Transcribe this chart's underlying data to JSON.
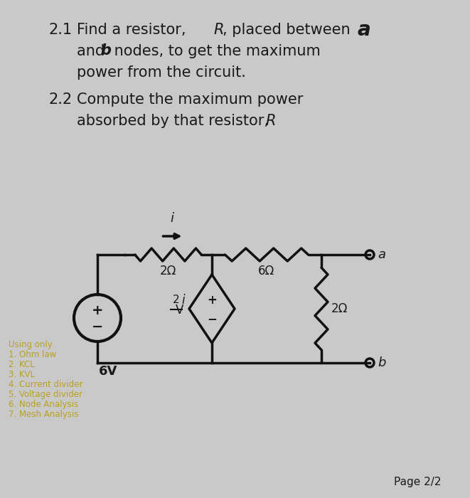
{
  "bg_color": "#c9c9c9",
  "text_color": "#1a1a1a",
  "yellow_color": "#b8a020",
  "circuit_color": "#111111",
  "using_only": "Using only",
  "items": [
    "1. Ohm law",
    "2. KCL",
    "3. KVL",
    "4. Current divider",
    "5. Voltage divider",
    "6. Node Analysis",
    "7. Mesh Analysis"
  ],
  "page": "Page 2/2"
}
